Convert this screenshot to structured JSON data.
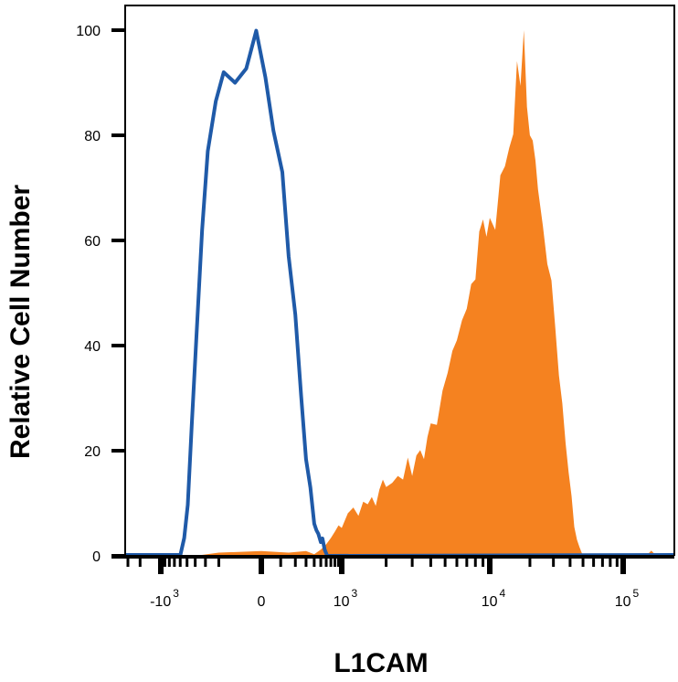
{
  "chart_data": {
    "type": "area",
    "title": "",
    "xlabel": "L1CAM",
    "ylabel": "Relative Cell Number",
    "x_scale": "biexponential (logicle)",
    "ylim": [
      0,
      100
    ],
    "yticks": [
      "0",
      "20",
      "40",
      "60",
      "80",
      "100"
    ],
    "xticks": [
      {
        "value": -1000,
        "base": "-10",
        "exp": "3"
      },
      {
        "value": 0,
        "base": "0",
        "exp": ""
      },
      {
        "value": 1000,
        "base": "10",
        "exp": "3"
      },
      {
        "value": 10000,
        "base": "10",
        "exp": "4"
      },
      {
        "value": 100000,
        "base": "10",
        "exp": "5"
      }
    ],
    "grid": false,
    "legend": "none",
    "series": [
      {
        "style": "filled",
        "color": "#F58220",
        "points": [
          [
            -400,
            0
          ],
          [
            -200,
            0.6
          ],
          [
            0,
            0.9
          ],
          [
            150,
            0.6
          ],
          [
            300,
            0.9
          ],
          [
            400,
            0.3
          ],
          [
            500,
            1.2
          ],
          [
            600,
            2.2
          ],
          [
            700,
            3.4
          ],
          [
            800,
            4.6
          ],
          [
            900,
            5.8
          ],
          [
            1000,
            5.3
          ],
          [
            1100,
            8.1
          ],
          [
            1200,
            9.2
          ],
          [
            1300,
            7.6
          ],
          [
            1400,
            10.3
          ],
          [
            1500,
            9.8
          ],
          [
            1600,
            11.2
          ],
          [
            1700,
            9.5
          ],
          [
            1800,
            12.6
          ],
          [
            1900,
            14.5
          ],
          [
            2000,
            13.1
          ],
          [
            2200,
            13.9
          ],
          [
            2400,
            15.2
          ],
          [
            2600,
            14.5
          ],
          [
            2800,
            18.7
          ],
          [
            3000,
            15.2
          ],
          [
            3200,
            19.1
          ],
          [
            3400,
            20.1
          ],
          [
            3600,
            18.4
          ],
          [
            3800,
            22.6
          ],
          [
            4000,
            25.2
          ],
          [
            4400,
            24.9
          ],
          [
            4800,
            31.4
          ],
          [
            5200,
            34.8
          ],
          [
            5600,
            39.0
          ],
          [
            6000,
            41.0
          ],
          [
            6500,
            44.8
          ],
          [
            7000,
            47.0
          ],
          [
            7500,
            51.7
          ],
          [
            8000,
            52.6
          ],
          [
            8500,
            61.7
          ],
          [
            9000,
            64.0
          ],
          [
            9500,
            60.7
          ],
          [
            10000,
            64.3
          ],
          [
            11000,
            62.0
          ],
          [
            12000,
            72.4
          ],
          [
            13000,
            74.1
          ],
          [
            14000,
            77.6
          ],
          [
            15000,
            80.2
          ],
          [
            16000,
            94.1
          ],
          [
            17000,
            89.4
          ],
          [
            18000,
            100
          ],
          [
            19000,
            85.4
          ],
          [
            20000,
            80.0
          ],
          [
            21000,
            79.0
          ],
          [
            22000,
            75.2
          ],
          [
            23000,
            69.7
          ],
          [
            25000,
            62.8
          ],
          [
            27000,
            55.5
          ],
          [
            29000,
            52.4
          ],
          [
            31000,
            43.4
          ],
          [
            33000,
            34.3
          ],
          [
            35000,
            29.0
          ],
          [
            37000,
            21.4
          ],
          [
            39000,
            15.9
          ],
          [
            41000,
            11.4
          ],
          [
            43000,
            5.5
          ],
          [
            45000,
            3.1
          ],
          [
            47000,
            1.7
          ],
          [
            49000,
            0.5
          ],
          [
            51000,
            0
          ],
          [
            120000,
            0
          ],
          [
            125000,
            1.0
          ],
          [
            130000,
            0
          ]
        ]
      },
      {
        "style": "line",
        "color": "#1F5AA8",
        "points": [
          [
            -600,
            0
          ],
          [
            -540,
            3.4
          ],
          [
            -490,
            9.7
          ],
          [
            -440,
            24.7
          ],
          [
            -390,
            40.8
          ],
          [
            -330,
            62.0
          ],
          [
            -280,
            77.0
          ],
          [
            -220,
            86.5
          ],
          [
            -170,
            92.0
          ],
          [
            -110,
            90.0
          ],
          [
            -60,
            92.7
          ],
          [
            -20,
            99.9
          ],
          [
            20,
            91.0
          ],
          [
            60,
            80.9
          ],
          [
            110,
            73.0
          ],
          [
            150,
            57.0
          ],
          [
            200,
            45.9
          ],
          [
            250,
            30.6
          ],
          [
            300,
            18.4
          ],
          [
            350,
            13.0
          ],
          [
            400,
            6.1
          ],
          [
            430,
            4.9
          ],
          [
            460,
            4.2
          ],
          [
            500,
            2.6
          ],
          [
            530,
            3.3
          ],
          [
            570,
            1.2
          ],
          [
            620,
            0
          ]
        ]
      }
    ]
  }
}
